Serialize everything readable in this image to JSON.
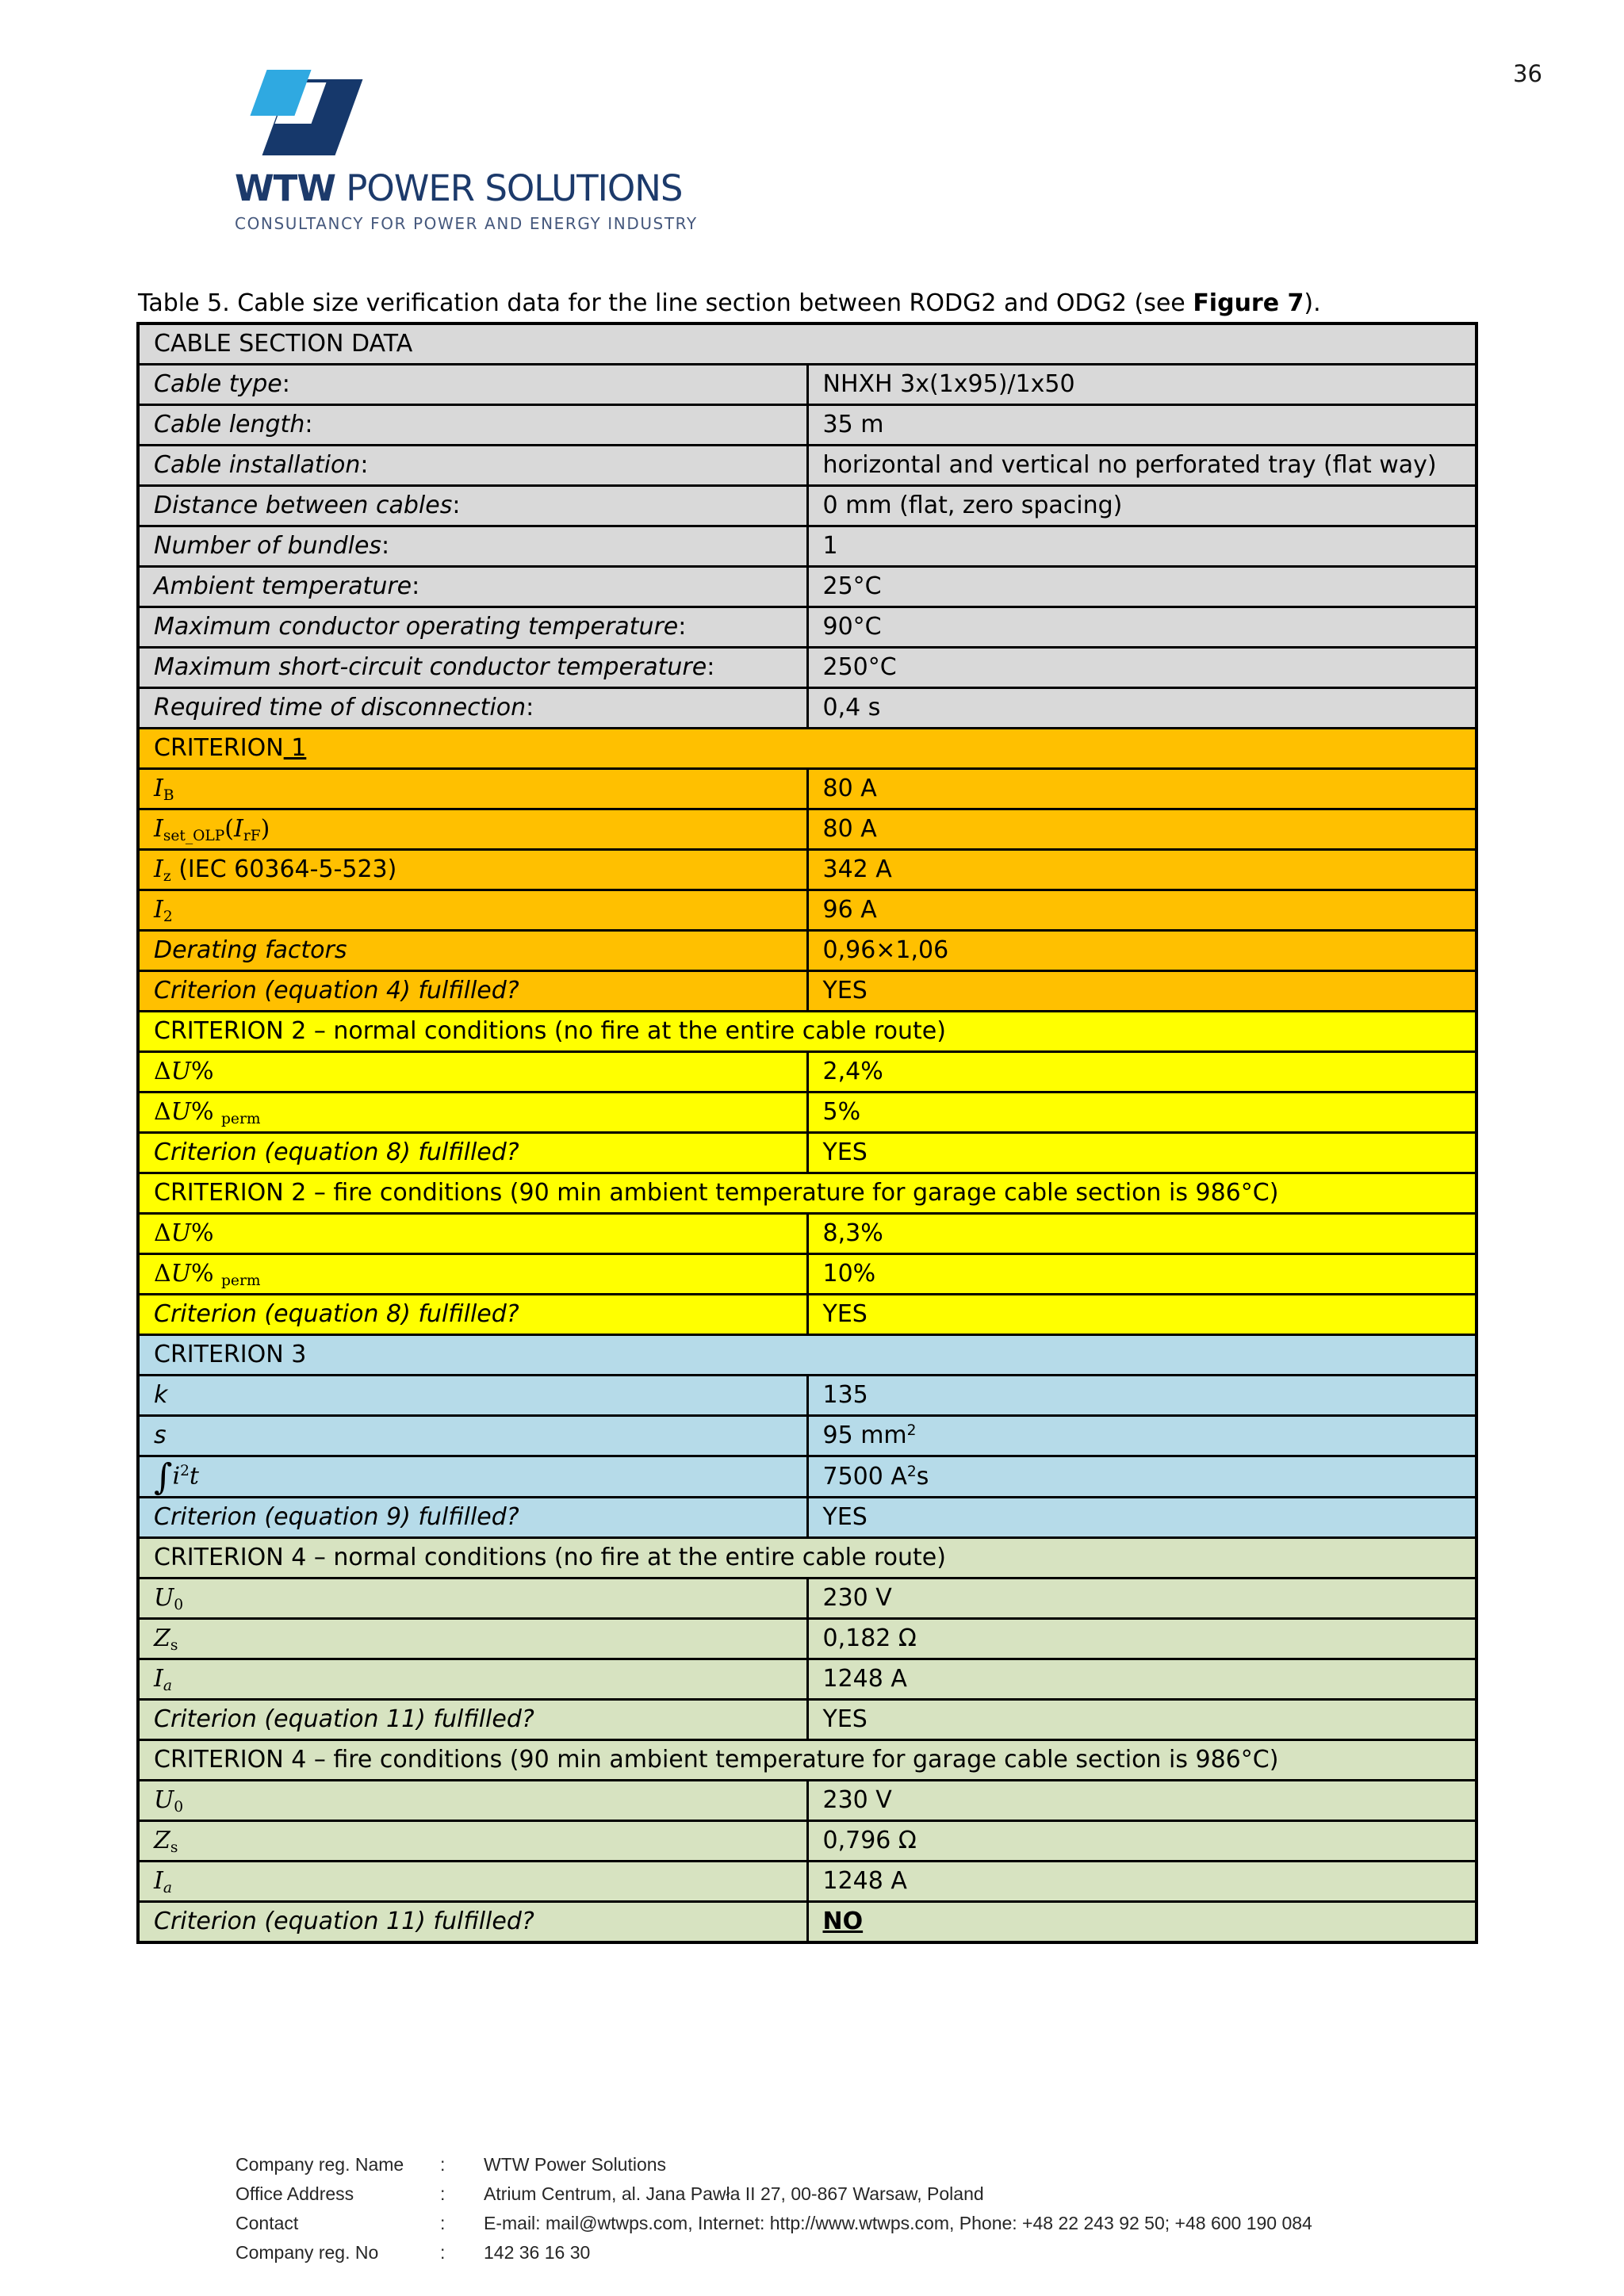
{
  "page": {
    "number": "36"
  },
  "logo": {
    "brand_bold": "WTW",
    "brand_rest": " POWER SOLUTIONS",
    "tagline": "CONSULTANCY FOR POWER AND ENERGY INDUSTRY",
    "navy": "#16386b",
    "light_blue": "#2fa9e1"
  },
  "title": {
    "prefix": "Table 5. Cable size verification data for the line section between RODG2 and ODG2 (see ",
    "bold": "Figure 7",
    "suffix": ")."
  },
  "table": {
    "colors": {
      "gray": "#d9d9d9",
      "orange": "#ffc000",
      "yellow": "#ffff00",
      "blue": "#b6dbe9",
      "green": "#d7e3c1"
    },
    "rows": [
      {
        "kind": "header",
        "bg": "gray",
        "label": [
          {
            "t": "CABLE SECTION DATA",
            "c": "hdr"
          }
        ]
      },
      {
        "kind": "data",
        "bg": "gray",
        "label": [
          {
            "t": "Cable type",
            "c": "lbl"
          },
          {
            "t": ":",
            "c": "txt"
          }
        ],
        "value": [
          {
            "t": "NHXH 3x(1x95)/1x50",
            "c": "val"
          }
        ]
      },
      {
        "kind": "data",
        "bg": "gray",
        "label": [
          {
            "t": "Cable length",
            "c": "lbl"
          },
          {
            "t": ":",
            "c": "txt"
          }
        ],
        "value": [
          {
            "t": "35 m",
            "c": "val"
          }
        ]
      },
      {
        "kind": "data",
        "bg": "gray",
        "label": [
          {
            "t": "Cable installation",
            "c": "lbl"
          },
          {
            "t": ":",
            "c": "txt"
          }
        ],
        "value": [
          {
            "t": "horizontal and vertical no perforated tray (flat way)",
            "c": "val"
          }
        ]
      },
      {
        "kind": "data",
        "bg": "gray",
        "label": [
          {
            "t": "Distance between cables",
            "c": "lbl"
          },
          {
            "t": ":",
            "c": "txt"
          }
        ],
        "value": [
          {
            "t": "0 mm (flat, zero spacing)",
            "c": "val"
          }
        ]
      },
      {
        "kind": "data",
        "bg": "gray",
        "label": [
          {
            "t": "Number of bundles",
            "c": "lbl"
          },
          {
            "t": ":",
            "c": "txt"
          }
        ],
        "value": [
          {
            "t": "1",
            "c": "val"
          }
        ]
      },
      {
        "kind": "data",
        "bg": "gray",
        "label": [
          {
            "t": "Ambient temperature",
            "c": "lbl"
          },
          {
            "t": ":",
            "c": "txt"
          }
        ],
        "value": [
          {
            "t": "25°C",
            "c": "val"
          }
        ]
      },
      {
        "kind": "data",
        "bg": "gray",
        "label": [
          {
            "t": "Maximum conductor operating temperature",
            "c": "lbl"
          },
          {
            "t": ":",
            "c": "txt"
          }
        ],
        "value": [
          {
            "t": "90°C",
            "c": "val"
          }
        ]
      },
      {
        "kind": "data",
        "bg": "gray",
        "label": [
          {
            "t": "Maximum short-circuit conductor temperature",
            "c": "lbl"
          },
          {
            "t": ":",
            "c": "txt"
          }
        ],
        "value": [
          {
            "t": "250°C",
            "c": "val"
          }
        ]
      },
      {
        "kind": "data",
        "bg": "gray",
        "label": [
          {
            "t": "Required time of disconnection",
            "c": "lbl"
          },
          {
            "t": ":",
            "c": "txt"
          }
        ],
        "value": [
          {
            "t": "0,4 s",
            "c": "val"
          }
        ]
      },
      {
        "kind": "header",
        "bg": "orange",
        "label": [
          {
            "t": "CRITERION",
            "c": "hdr"
          },
          {
            "t": " 1",
            "c": "hdru"
          }
        ]
      },
      {
        "kind": "data",
        "bg": "orange",
        "label": [
          {
            "t": "I",
            "c": "mi"
          },
          {
            "t": "B",
            "c": "msub"
          }
        ],
        "value": [
          {
            "t": "80 A",
            "c": "val"
          }
        ]
      },
      {
        "kind": "data",
        "bg": "orange",
        "label": [
          {
            "t": "I",
            "c": "mi"
          },
          {
            "t": "set_OLP",
            "c": "msub"
          },
          {
            "t": "(",
            "c": "mtxt"
          },
          {
            "t": "I",
            "c": "mi"
          },
          {
            "t": "rF",
            "c": "msub"
          },
          {
            "t": ")",
            "c": "mtxt"
          }
        ],
        "value": [
          {
            "t": "80 A",
            "c": "val"
          }
        ]
      },
      {
        "kind": "data",
        "bg": "orange",
        "label": [
          {
            "t": "I",
            "c": "mi"
          },
          {
            "t": "z",
            "c": "msub"
          },
          {
            "t": " (IEC 60364-5-523)",
            "c": "txt"
          }
        ],
        "value": [
          {
            "t": "342 A",
            "c": "val"
          }
        ]
      },
      {
        "kind": "data",
        "bg": "orange",
        "label": [
          {
            "t": "I",
            "c": "mi"
          },
          {
            "t": "2",
            "c": "msub"
          }
        ],
        "value": [
          {
            "t": "96 A",
            "c": "val"
          }
        ]
      },
      {
        "kind": "data",
        "bg": "orange",
        "label": [
          {
            "t": "Derating factors",
            "c": "lbl"
          }
        ],
        "value": [
          {
            "t": "0,96×1,06",
            "c": "val"
          }
        ]
      },
      {
        "kind": "data",
        "bg": "orange",
        "label": [
          {
            "t": "Criterion (equation 4) fulfilled?",
            "c": "lbl"
          }
        ],
        "value": [
          {
            "t": "YES",
            "c": "val"
          }
        ]
      },
      {
        "kind": "header",
        "bg": "yellow",
        "label": [
          {
            "t": "CRITERION 2 – normal conditions (no fire at the entire cable route)",
            "c": "hdr"
          }
        ]
      },
      {
        "kind": "data",
        "bg": "yellow",
        "label": [
          {
            "t": "Δ",
            "c": "mtxt"
          },
          {
            "t": "U",
            "c": "mi"
          },
          {
            "t": "%",
            "c": "mtxt"
          }
        ],
        "value": [
          {
            "t": "2,4%",
            "c": "val"
          }
        ]
      },
      {
        "kind": "data",
        "bg": "yellow",
        "label": [
          {
            "t": "Δ",
            "c": "mtxt"
          },
          {
            "t": "U",
            "c": "mi"
          },
          {
            "t": "%",
            "c": "mtxt"
          },
          {
            "t": " ",
            "c": "txt"
          },
          {
            "t": "perm",
            "c": "msub"
          }
        ],
        "value": [
          {
            "t": "5%",
            "c": "val"
          }
        ]
      },
      {
        "kind": "data",
        "bg": "yellow",
        "label": [
          {
            "t": "Criterion (equation 8) fulfilled?",
            "c": "lbl"
          }
        ],
        "value": [
          {
            "t": "YES",
            "c": "val"
          }
        ]
      },
      {
        "kind": "header",
        "bg": "yellow",
        "label": [
          {
            "t": "CRITERION 2 – fire conditions (90 min ambient temperature for garage cable section is 986°C)",
            "c": "hdr"
          }
        ]
      },
      {
        "kind": "data",
        "bg": "yellow",
        "label": [
          {
            "t": "Δ",
            "c": "mtxt"
          },
          {
            "t": "U",
            "c": "mi"
          },
          {
            "t": "%",
            "c": "mtxt"
          }
        ],
        "value": [
          {
            "t": "8,3%",
            "c": "val"
          }
        ]
      },
      {
        "kind": "data",
        "bg": "yellow",
        "label": [
          {
            "t": "Δ",
            "c": "mtxt"
          },
          {
            "t": "U",
            "c": "mi"
          },
          {
            "t": "%",
            "c": "mtxt"
          },
          {
            "t": " ",
            "c": "txt"
          },
          {
            "t": "perm",
            "c": "msub"
          }
        ],
        "value": [
          {
            "t": "10%",
            "c": "val"
          }
        ]
      },
      {
        "kind": "data",
        "bg": "yellow",
        "label": [
          {
            "t": "Criterion (equation 8) fulfilled?",
            "c": "lbl"
          }
        ],
        "value": [
          {
            "t": "YES",
            "c": "val"
          }
        ]
      },
      {
        "kind": "header",
        "bg": "blue",
        "label": [
          {
            "t": "CRITERION 3",
            "c": "hdr"
          }
        ]
      },
      {
        "kind": "data",
        "bg": "blue",
        "label": [
          {
            "t": "k",
            "c": "lbl"
          }
        ],
        "value": [
          {
            "t": "135",
            "c": "val"
          }
        ]
      },
      {
        "kind": "data",
        "bg": "blue",
        "label": [
          {
            "t": "s",
            "c": "lbl"
          }
        ],
        "value": [
          {
            "t": "95 mm",
            "c": "val"
          },
          {
            "t": "2",
            "c": "vsup"
          }
        ]
      },
      {
        "kind": "data",
        "bg": "blue",
        "label": [
          {
            "t": "∫",
            "c": "mint"
          },
          {
            "t": "i",
            "c": "mi"
          },
          {
            "t": "2",
            "c": "msup"
          },
          {
            "t": "t",
            "c": "mi"
          }
        ],
        "value": [
          {
            "t": "7500 A",
            "c": "val"
          },
          {
            "t": "2",
            "c": "vsup"
          },
          {
            "t": "s",
            "c": "val"
          }
        ]
      },
      {
        "kind": "data",
        "bg": "blue",
        "label": [
          {
            "t": "Criterion (equation 9) fulfilled?",
            "c": "lbl"
          }
        ],
        "value": [
          {
            "t": "YES",
            "c": "val"
          }
        ]
      },
      {
        "kind": "header",
        "bg": "green",
        "label": [
          {
            "t": "CRITERION 4 – normal conditions (no fire at the entire cable route)",
            "c": "hdr"
          }
        ]
      },
      {
        "kind": "data",
        "bg": "green",
        "label": [
          {
            "t": "U",
            "c": "mi"
          },
          {
            "t": "0",
            "c": "msub"
          }
        ],
        "value": [
          {
            "t": "230 V",
            "c": "val"
          }
        ]
      },
      {
        "kind": "data",
        "bg": "green",
        "label": [
          {
            "t": "Z",
            "c": "mi"
          },
          {
            "t": "s",
            "c": "msub"
          }
        ],
        "value": [
          {
            "t": "0,182 Ω",
            "c": "val"
          }
        ]
      },
      {
        "kind": "data",
        "bg": "green",
        "label": [
          {
            "t": "I",
            "c": "mi"
          },
          {
            "t": "a",
            "c": "msubi"
          }
        ],
        "value": [
          {
            "t": "1248 A",
            "c": "val"
          }
        ]
      },
      {
        "kind": "data",
        "bg": "green",
        "label": [
          {
            "t": "Criterion (equation 11) fulfilled?",
            "c": "lbl"
          }
        ],
        "value": [
          {
            "t": "YES",
            "c": "val"
          }
        ]
      },
      {
        "kind": "header",
        "bg": "green",
        "label": [
          {
            "t": "CRITERION 4 – fire conditions (90 min ambient temperature for garage cable section is 986°C)",
            "c": "hdr"
          }
        ]
      },
      {
        "kind": "data",
        "bg": "green",
        "label": [
          {
            "t": "U",
            "c": "mi"
          },
          {
            "t": "0",
            "c": "msub"
          }
        ],
        "value": [
          {
            "t": "230 V",
            "c": "val"
          }
        ]
      },
      {
        "kind": "data",
        "bg": "green",
        "label": [
          {
            "t": "Z",
            "c": "mi"
          },
          {
            "t": "s",
            "c": "msub"
          }
        ],
        "value": [
          {
            "t": "0,796 Ω",
            "c": "val"
          }
        ]
      },
      {
        "kind": "data",
        "bg": "green",
        "label": [
          {
            "t": "I",
            "c": "mi"
          },
          {
            "t": "a",
            "c": "msubi"
          }
        ],
        "value": [
          {
            "t": "1248 A",
            "c": "val"
          }
        ]
      },
      {
        "kind": "data",
        "bg": "green",
        "label": [
          {
            "t": "Criterion (equation 11) fulfilled?",
            "c": "lbl"
          }
        ],
        "value": [
          {
            "t": "NO",
            "c": "valno"
          }
        ]
      }
    ]
  },
  "footer": {
    "rows": [
      {
        "label": "Company reg. Name",
        "sep": ":",
        "value": "WTW Power Solutions"
      },
      {
        "label": "Office Address",
        "sep": ":",
        "value": "Atrium Centrum, al. Jana Pawła II 27, 00-867 Warsaw, Poland"
      },
      {
        "label": "Contact",
        "sep": ":",
        "value": "E-mail: mail@wtwps.com, Internet: http://www.wtwps.com, Phone: +48 22 243 92 50; +48 600 190 084"
      },
      {
        "label": "Company reg. No",
        "sep": ":",
        "value": "142 36 16 30"
      }
    ]
  }
}
